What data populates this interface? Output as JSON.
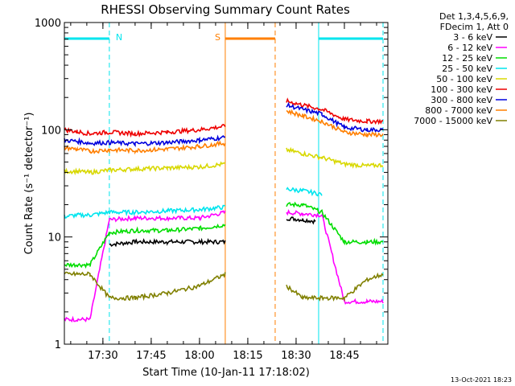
{
  "chart_data": {
    "type": "line",
    "title": "RHESSI Observing Summary Count Rates",
    "xlabel": "Start Time (10-Jan-11 17:18:02)",
    "ylabel": "Count Rate (s⁻¹ detector⁻¹)",
    "y_scale": "log",
    "ylim": [
      1,
      1000
    ],
    "xlim": [
      "17:18:02",
      "18:58:30"
    ],
    "x_ticks": [
      "17:30",
      "17:45",
      "18:00",
      "18:15",
      "18:30",
      "18:45"
    ],
    "y_ticks": [
      "1",
      "10",
      "100",
      "1000"
    ],
    "grid": false,
    "legend_position": "right",
    "legend_header": [
      "Det 1,3,4,5,6,9,",
      "FDecim 1, Att 0"
    ],
    "timestamp": "13-Oct-2021 18:23",
    "data_gap": [
      "18:09:00",
      "18:25:30"
    ],
    "markers": [
      {
        "label": "N",
        "kind": "night",
        "color": "#00e5ee",
        "start": "17:18:02",
        "end": "17:32:00"
      },
      {
        "label": "S",
        "kind": "saa",
        "color": "#ff7f00",
        "start": "18:08:00",
        "end": "18:23:30"
      },
      {
        "label": "",
        "kind": "night",
        "color": "#00e5ee",
        "start": "18:37:00",
        "end": "18:57:00"
      }
    ],
    "series": [
      {
        "name": "3 - 6 keV",
        "color": "#000000",
        "x": [
          "17:18",
          "17:22",
          "17:26",
          "17:32",
          "17:40",
          "17:50",
          "18:00",
          "18:08",
          "18:27",
          "18:32",
          "18:36"
        ],
        "y": [
          null,
          null,
          null,
          8.5,
          9,
          9,
          9,
          9,
          15,
          14.5,
          14
        ]
      },
      {
        "name": "6 - 12 keV",
        "color": "#ff00ff",
        "x": [
          "17:18",
          "17:22",
          "17:26",
          "17:32",
          "17:40",
          "17:50",
          "18:00",
          "18:08",
          "18:27",
          "18:32",
          "18:38",
          "18:45",
          "18:52",
          "18:57"
        ],
        "y": [
          1.7,
          1.7,
          1.7,
          14.5,
          15,
          15,
          15,
          17,
          17,
          16.5,
          16,
          2.5,
          2.5,
          2.5
        ]
      },
      {
        "name": "12 - 25 keV",
        "color": "#00dd00",
        "x": [
          "17:18",
          "17:22",
          "17:26",
          "17:32",
          "17:40",
          "17:50",
          "18:00",
          "18:08",
          "18:27",
          "18:32",
          "18:38",
          "18:45",
          "18:52",
          "18:57"
        ],
        "y": [
          5.5,
          5.5,
          5.5,
          11,
          11.5,
          11.5,
          12,
          13,
          20,
          20,
          17,
          9,
          9,
          9
        ]
      },
      {
        "name": "25 - 50 keV",
        "color": "#00e5ee",
        "x": [
          "17:18",
          "17:22",
          "17:26",
          "17:32",
          "17:40",
          "17:50",
          "18:00",
          "18:08",
          "18:27",
          "18:32",
          "18:38",
          "18:45",
          "18:52",
          "18:57"
        ],
        "y": [
          15.5,
          16,
          16,
          17,
          17,
          17.5,
          18,
          19,
          28,
          27,
          25,
          null,
          null,
          null
        ]
      },
      {
        "name": "50 - 100 keV",
        "color": "#d8d800",
        "x": [
          "17:18",
          "17:22",
          "17:26",
          "17:32",
          "17:40",
          "17:50",
          "18:00",
          "18:08",
          "18:27",
          "18:32",
          "18:38",
          "18:45",
          "18:52",
          "18:57"
        ],
        "y": [
          41,
          41,
          40,
          42,
          43,
          44,
          45,
          48,
          65,
          60,
          55,
          48,
          46,
          47
        ]
      },
      {
        "name": "100 - 300 keV",
        "color": "#ee0000",
        "x": [
          "17:18",
          "17:22",
          "17:26",
          "17:32",
          "17:40",
          "17:50",
          "18:00",
          "18:08",
          "18:27",
          "18:32",
          "18:38",
          "18:45",
          "18:52",
          "18:57"
        ],
        "y": [
          100,
          96,
          92,
          95,
          92,
          95,
          100,
          108,
          185,
          170,
          155,
          125,
          120,
          120
        ]
      },
      {
        "name": "300 - 800 keV",
        "color": "#0000dd",
        "x": [
          "17:18",
          "17:22",
          "17:26",
          "17:32",
          "17:40",
          "17:50",
          "18:00",
          "18:08",
          "18:27",
          "18:32",
          "18:38",
          "18:45",
          "18:52",
          "18:57"
        ],
        "y": [
          80,
          78,
          75,
          76,
          74,
          76,
          80,
          85,
          170,
          155,
          140,
          105,
          100,
          100
        ]
      },
      {
        "name": "800 - 7000 keV",
        "color": "#ff7f00",
        "x": [
          "17:18",
          "17:22",
          "17:26",
          "17:32",
          "17:40",
          "17:50",
          "18:00",
          "18:08",
          "18:27",
          "18:32",
          "18:38",
          "18:45",
          "18:52",
          "18:57"
        ],
        "y": [
          68,
          66,
          63,
          65,
          64,
          66,
          70,
          75,
          150,
          135,
          120,
          95,
          90,
          90
        ]
      },
      {
        "name": "7000 - 15000 keV",
        "color": "#808000",
        "x": [
          "17:18",
          "17:22",
          "17:26",
          "17:32",
          "17:40",
          "17:50",
          "18:00",
          "18:08",
          "18:27",
          "18:32",
          "18:38",
          "18:45",
          "18:52",
          "18:57"
        ],
        "y": [
          4.5,
          4.5,
          4.5,
          2.7,
          2.7,
          3,
          3.5,
          4.5,
          3.5,
          2.7,
          2.7,
          2.7,
          4,
          4.5
        ]
      }
    ]
  }
}
